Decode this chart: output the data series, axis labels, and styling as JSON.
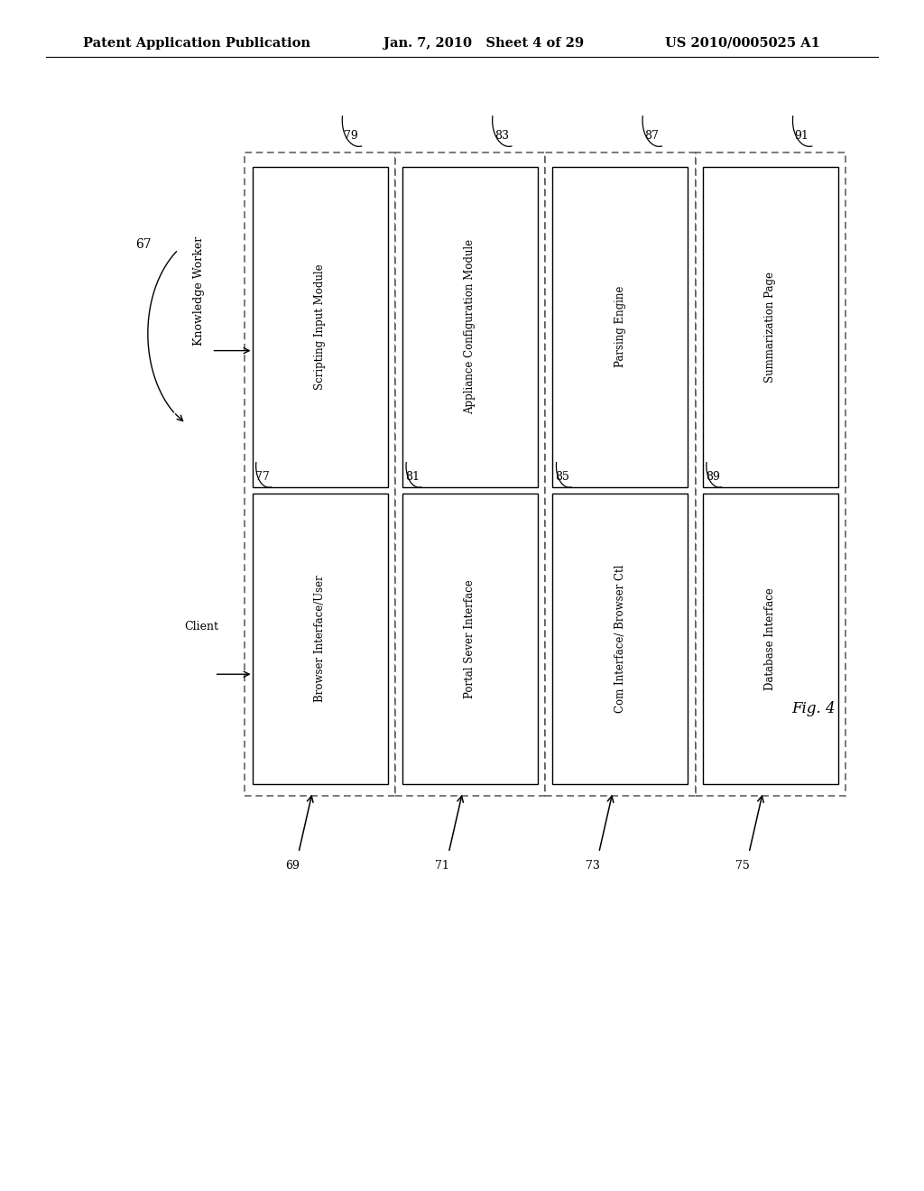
{
  "header_left": "Patent Application Publication",
  "header_mid": "Jan. 7, 2010   Sheet 4 of 29",
  "header_right": "US 2010/0005025 A1",
  "fig_label": "Fig. 4",
  "bg_color": "#ffffff",
  "columns": [
    {
      "outer_label": "79",
      "top_box_text": "Scripting Input Module",
      "bottom_label": "77",
      "bottom_box_text": "Browser Interface/User",
      "arrow_label": "69"
    },
    {
      "outer_label": "83",
      "top_box_text": "Appliance Configuration Module",
      "bottom_label": "81",
      "bottom_box_text": "Portal Sever Interface",
      "arrow_label": "71"
    },
    {
      "outer_label": "87",
      "top_box_text": "Parsing Engine",
      "bottom_label": "85",
      "bottom_box_text": "Com Interface/ Browser Ctl",
      "arrow_label": "73"
    },
    {
      "outer_label": "91",
      "top_box_text": "Summarization Page",
      "bottom_label": "89",
      "bottom_box_text": "Database Interface",
      "arrow_label": "75"
    }
  ]
}
